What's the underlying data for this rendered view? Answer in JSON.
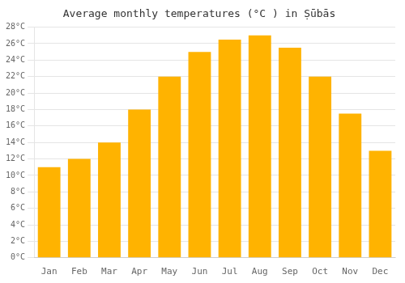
{
  "chart_data": {
    "type": "bar",
    "title": "Average monthly temperatures (°C ) in Ṣūbās",
    "categories": [
      "Jan",
      "Feb",
      "Mar",
      "Apr",
      "May",
      "Jun",
      "Jul",
      "Aug",
      "Sep",
      "Oct",
      "Nov",
      "Dec"
    ],
    "values": [
      11,
      12,
      14,
      18,
      22,
      25,
      26.5,
      27,
      25.5,
      22,
      17.5,
      13
    ],
    "color": "#FFB300",
    "ylim": [
      0,
      28
    ],
    "yticks": [
      {
        "value": 0,
        "label": "0°C"
      },
      {
        "value": 2,
        "label": "2°C"
      },
      {
        "value": 4,
        "label": "4°C"
      },
      {
        "value": 6,
        "label": "6°C"
      },
      {
        "value": 8,
        "label": "8°C"
      },
      {
        "value": 10,
        "label": "10°C"
      },
      {
        "value": 12,
        "label": "12°C"
      },
      {
        "value": 14,
        "label": "14°C"
      },
      {
        "value": 16,
        "label": "16°C"
      },
      {
        "value": 18,
        "label": "18°C"
      },
      {
        "value": 20,
        "label": "20°C"
      },
      {
        "value": 22,
        "label": "22°C"
      },
      {
        "value": 24,
        "label": "24°C"
      },
      {
        "value": 26,
        "label": "26°C"
      },
      {
        "value": 28,
        "label": "28°C"
      }
    ],
    "grid": true
  }
}
